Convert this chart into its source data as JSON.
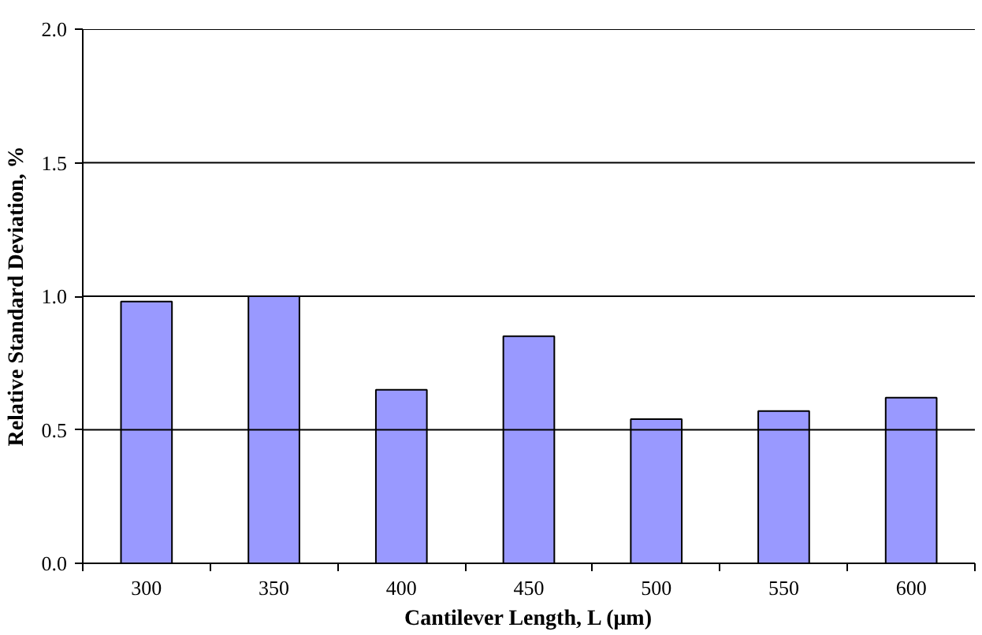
{
  "chart_data": {
    "type": "bar",
    "xlabel": "Cantilever Length, L (μm)",
    "ylabel": "Relative Standard Deviation, %",
    "categories": [
      "300",
      "350",
      "400",
      "450",
      "500",
      "550",
      "600"
    ],
    "values": [
      0.98,
      1.0,
      0.65,
      0.85,
      0.54,
      0.57,
      0.62
    ],
    "color": "#9999ff",
    "ylim": [
      0,
      2.0
    ],
    "yticks": [
      {
        "value": 0,
        "label": "0.0"
      },
      {
        "value": 0.5,
        "label": "0.5"
      },
      {
        "value": 1.0,
        "label": "1.0"
      },
      {
        "value": 1.5,
        "label": "1.5"
      },
      {
        "value": 2.0,
        "label": "2.0"
      }
    ],
    "grid": "y"
  }
}
